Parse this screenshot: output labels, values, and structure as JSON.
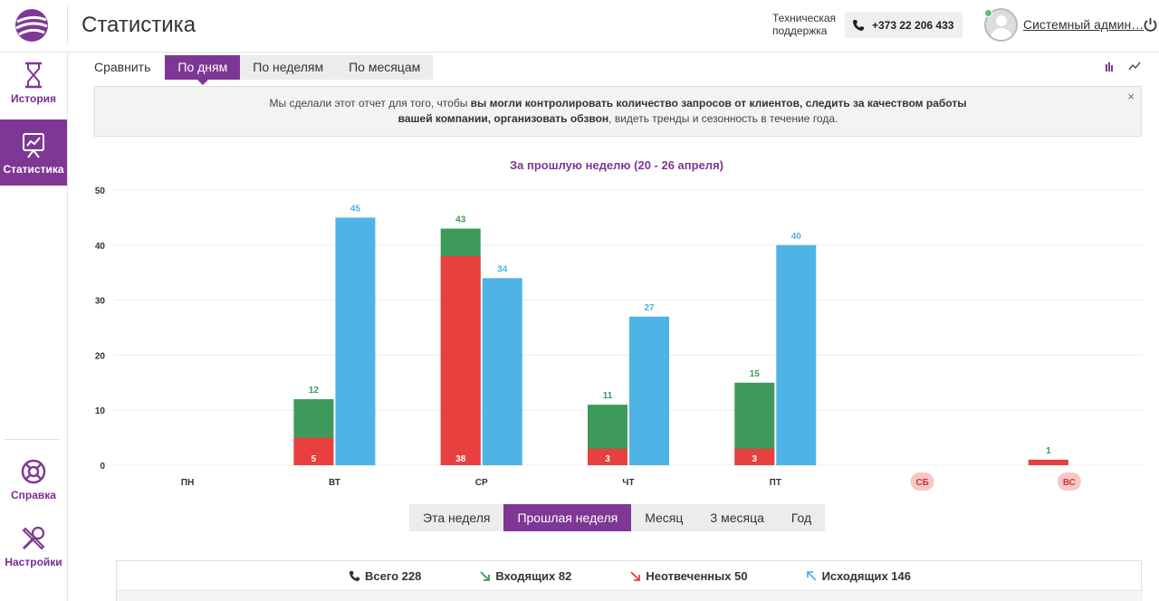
{
  "header": {
    "title": "Статистика",
    "support_label": "Техническая поддержка",
    "phone": "+373 22 206 433",
    "user_name": "Системный админ…"
  },
  "sidebar": {
    "items": [
      {
        "label": "История",
        "icon": "hourglass-icon"
      },
      {
        "label": "Статистика",
        "icon": "chart-board-icon"
      },
      {
        "label": "Справка",
        "icon": "lifebuoy-icon"
      },
      {
        "label": "Настройки",
        "icon": "tools-icon"
      }
    ]
  },
  "mode_tabs": {
    "compare": "Сравнить",
    "by_days": "По дням",
    "by_weeks": "По неделям",
    "by_months": "По месяцам"
  },
  "info": {
    "p1": "Мы сделали этот отчет для того, чтобы ",
    "b1": "вы могли контролировать количество запросов от клиентов, следить за качеством работы",
    "b2": "вашей компании, организовать обзвон",
    "p2": ", видеть тренды и сезонность в течение года.",
    "close": "×"
  },
  "period_tabs": [
    "Эта неделя",
    "Прошлая неделя",
    "Месяц",
    "3 месяца",
    "Год"
  ],
  "summary": {
    "total": "Всего 228",
    "incoming": "Входящих 82",
    "missed": "Неотвеченных 50",
    "outgoing": "Исходящих 146"
  },
  "colors": {
    "accent": "#7e3794",
    "incoming": "#3e9a5a",
    "missed": "#e8403f",
    "outgoing": "#4fb3e6",
    "weekend_badge": "#f6c7c7"
  },
  "chart_data": {
    "type": "bar",
    "title": "За прошлую неделю (20 - 26 апреля)",
    "categories": [
      "ПН",
      "ВТ",
      "СР",
      "ЧТ",
      "ПТ",
      "СБ",
      "ВС"
    ],
    "weekend": [
      false,
      false,
      false,
      false,
      false,
      true,
      true
    ],
    "ylim": [
      0,
      50
    ],
    "yticks": [
      0,
      10,
      20,
      30,
      40,
      50
    ],
    "incoming_total": [
      0,
      12,
      43,
      11,
      15,
      0,
      1
    ],
    "missed": [
      0,
      5,
      38,
      3,
      3,
      0,
      1
    ],
    "outgoing": [
      0,
      45,
      34,
      27,
      40,
      0,
      0
    ]
  }
}
